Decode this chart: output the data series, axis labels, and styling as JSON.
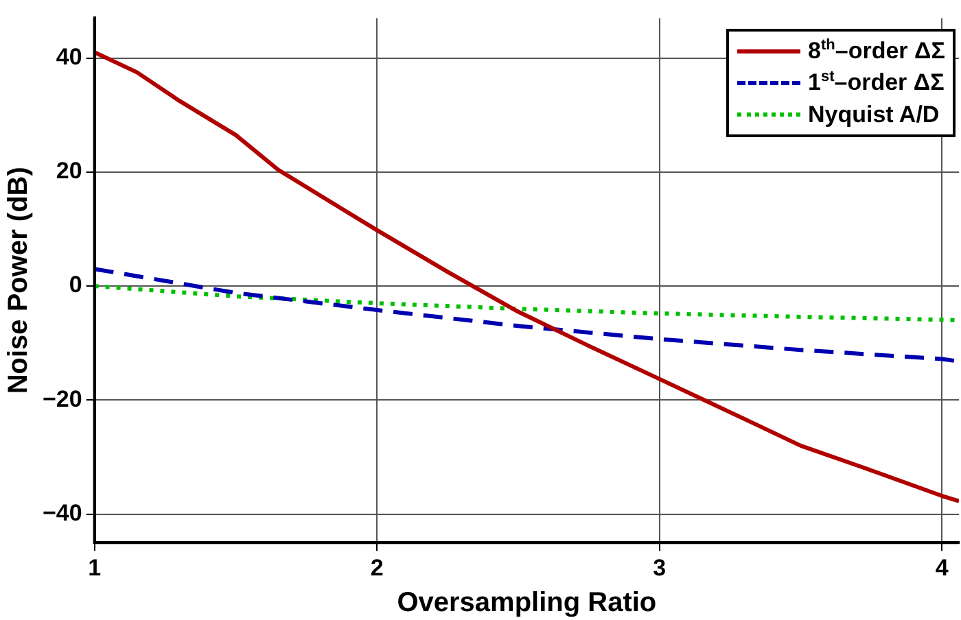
{
  "chart_data": {
    "type": "line",
    "xlabel": "Oversampling Ratio",
    "ylabel": "Noise Power (dB)",
    "xlim": [
      1,
      4.06
    ],
    "xticks": [
      1,
      2,
      3,
      4
    ],
    "ylim": [
      -45,
      47
    ],
    "yticks": [
      -40,
      -20,
      0,
      20,
      40
    ],
    "grid": true,
    "legend": "top right",
    "marker": "none",
    "series": [
      {
        "name": "8$^{th}$–order ΔΣ",
        "color": "#b00000",
        "line_style": "solid",
        "x": [
          1,
          1.15,
          1.3,
          1.5,
          1.65,
          2,
          2.25,
          2.5,
          2.75,
          3,
          3.33,
          3.5,
          3.72,
          4,
          4.06
        ],
        "values": [
          41,
          37.5,
          32.5,
          26.5,
          20.4,
          9.8,
          2.5,
          -4.5,
          -10.5,
          -16.3,
          -24,
          -28,
          -31.8,
          -36.8,
          -37.7
        ]
      },
      {
        "name": "1$^{st}$–order ΔΣ",
        "color": "#0000b0",
        "line_style": "dashed",
        "x": [
          1,
          1.5,
          2,
          2.5,
          3,
          3.5,
          4,
          4.06
        ],
        "values": [
          3,
          -1.2,
          -4.2,
          -7,
          -9.3,
          -11.2,
          -12.8,
          -13.2
        ]
      },
      {
        "name": "Nyquist A/D",
        "color": "#00c000",
        "line_style": "dotted",
        "x": [
          1,
          1.5,
          2,
          2.5,
          3,
          3.5,
          4,
          4.06
        ],
        "values": [
          0,
          -1.8,
          -3,
          -4,
          -4.8,
          -5.4,
          -5.9,
          -6
        ]
      }
    ]
  }
}
